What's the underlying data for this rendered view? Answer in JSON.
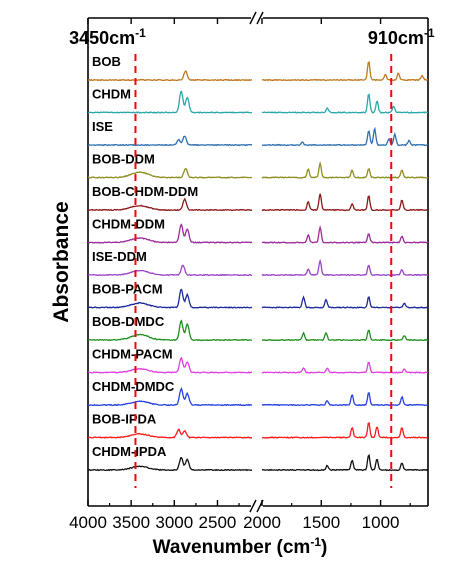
{
  "chart_data": {
    "type": "line",
    "title": "",
    "xlabel": "Wavenumber (cm",
    "xlabel_sup": "-1",
    "xlabel_close": ")",
    "ylabel": "Absorbance",
    "x_unit": "cm-1",
    "x_reversed": true,
    "x_ranges": [
      [
        2100,
        4000
      ],
      [
        600,
        2000
      ]
    ],
    "x_ticks": [
      4000,
      3500,
      3000,
      2500,
      2000,
      1500,
      1000
    ],
    "x_tick_labels": [
      "4000",
      "3500",
      "3000",
      "2500",
      "2000",
      "1500",
      "1000"
    ],
    "axis_break": "//",
    "grid": false,
    "legend": "none",
    "reference_lines": [
      {
        "x": 3450,
        "label": "3450cm",
        "sup": "-1",
        "color": "#ff0000",
        "style": "dashed"
      },
      {
        "x": 910,
        "label": "910cm",
        "sup": "-1",
        "color": "#ff0000",
        "style": "dashed"
      }
    ],
    "series": [
      {
        "name": "BOB",
        "color": "#c07820",
        "peaks": [
          [
            2870,
            1.0
          ],
          [
            1100,
            2.1
          ],
          [
            960,
            0.6
          ],
          [
            850,
            0.8
          ],
          [
            650,
            0.5
          ]
        ]
      },
      {
        "name": "CHDM",
        "color": "#2aa8a8",
        "peaks": [
          [
            2920,
            2.4
          ],
          [
            2850,
            1.7
          ],
          [
            1450,
            0.5
          ],
          [
            1100,
            2.1
          ],
          [
            1030,
            1.3
          ],
          [
            890,
            0.7
          ]
        ]
      },
      {
        "name": "ISE",
        "color": "#2f6fb0",
        "peaks": [
          [
            2950,
            0.6
          ],
          [
            2880,
            1.0
          ],
          [
            1660,
            0.3
          ],
          [
            1100,
            1.6
          ],
          [
            1050,
            1.8
          ],
          [
            930,
            0.7
          ],
          [
            880,
            1.2
          ],
          [
            760,
            0.5
          ]
        ]
      },
      {
        "name": "BOB-DDM",
        "color": "#8e8e20",
        "peaks": [
          [
            3400,
            0.6
          ],
          [
            2870,
            1.0
          ],
          [
            1610,
            0.9
          ],
          [
            1510,
            1.6
          ],
          [
            1240,
            0.8
          ],
          [
            1100,
            1.0
          ],
          [
            820,
            0.8
          ]
        ]
      },
      {
        "name": "BOB-CHDM-DDM",
        "color": "#8b1a1a",
        "peaks": [
          [
            3400,
            0.5
          ],
          [
            2880,
            1.2
          ],
          [
            1610,
            0.9
          ],
          [
            1510,
            1.8
          ],
          [
            1240,
            0.7
          ],
          [
            1100,
            1.6
          ],
          [
            820,
            1.1
          ]
        ]
      },
      {
        "name": "CHDM-DDM",
        "color": "#9b2c9b",
        "peaks": [
          [
            3400,
            0.5
          ],
          [
            2920,
            2.0
          ],
          [
            2850,
            1.5
          ],
          [
            1610,
            0.8
          ],
          [
            1510,
            1.7
          ],
          [
            1100,
            1.0
          ],
          [
            820,
            0.7
          ]
        ]
      },
      {
        "name": "ISE-DDM",
        "color": "#9a44c8",
        "peaks": [
          [
            3400,
            0.5
          ],
          [
            2900,
            1.1
          ],
          [
            1610,
            0.7
          ],
          [
            1510,
            1.6
          ],
          [
            1100,
            1.1
          ],
          [
            820,
            0.6
          ]
        ]
      },
      {
        "name": "BOB-PACM",
        "color": "#1c2a9c",
        "peaks": [
          [
            3400,
            0.5
          ],
          [
            2920,
            2.0
          ],
          [
            2850,
            1.4
          ],
          [
            1650,
            1.2
          ],
          [
            1460,
            0.9
          ],
          [
            1100,
            1.2
          ],
          [
            800,
            0.5
          ]
        ]
      },
      {
        "name": "BOB-DMDC",
        "color": "#1f8f1f",
        "peaks": [
          [
            3400,
            0.6
          ],
          [
            2920,
            2.1
          ],
          [
            2850,
            1.8
          ],
          [
            1650,
            0.8
          ],
          [
            1460,
            0.8
          ],
          [
            1100,
            1.1
          ],
          [
            800,
            0.5
          ]
        ]
      },
      {
        "name": "CHDM-PACM",
        "color": "#e040e0",
        "peaks": [
          [
            3400,
            0.4
          ],
          [
            2920,
            1.6
          ],
          [
            2850,
            1.2
          ],
          [
            1650,
            0.5
          ],
          [
            1450,
            0.5
          ],
          [
            1100,
            1.2
          ],
          [
            800,
            0.4
          ]
        ]
      },
      {
        "name": "CHDM-DMDC",
        "color": "#2840e0",
        "peaks": [
          [
            3400,
            0.4
          ],
          [
            2920,
            1.8
          ],
          [
            2850,
            1.3
          ],
          [
            1450,
            0.5
          ],
          [
            1240,
            1.1
          ],
          [
            1100,
            1.4
          ],
          [
            820,
            0.9
          ]
        ]
      },
      {
        "name": "BOB-IPDA",
        "color": "#ff1a1a",
        "peaks": [
          [
            3400,
            0.4
          ],
          [
            2950,
            0.9
          ],
          [
            2880,
            0.7
          ],
          [
            1240,
            1.1
          ],
          [
            1100,
            1.7
          ],
          [
            1030,
            1.2
          ],
          [
            820,
            1.1
          ]
        ]
      },
      {
        "name": "CHDM-IPDA",
        "color": "#111111",
        "peaks": [
          [
            3400,
            0.4
          ],
          [
            2920,
            1.4
          ],
          [
            2850,
            1.2
          ],
          [
            1450,
            0.5
          ],
          [
            1240,
            1.1
          ],
          [
            1100,
            1.7
          ],
          [
            1030,
            1.2
          ],
          [
            820,
            0.8
          ]
        ]
      }
    ]
  }
}
